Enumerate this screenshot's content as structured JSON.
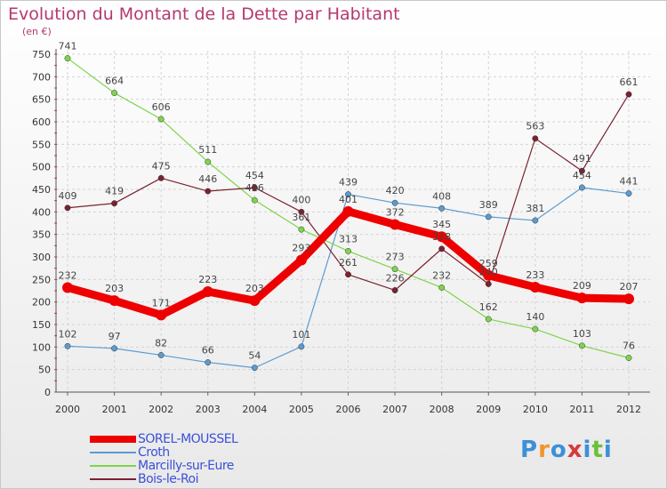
{
  "title": "Evolution du Montant de la Dette par Habitant",
  "unit": "(en €)",
  "brand": "Proxiti",
  "brand_colors": [
    "#3d8fd8",
    "#f0962a",
    "#3d8fd8",
    "#d73a3a",
    "#3d8fd8",
    "#6cbf3a",
    "#3d8fd8"
  ],
  "chart_data": {
    "type": "line",
    "x": [
      2000,
      2001,
      2002,
      2003,
      2004,
      2005,
      2006,
      2007,
      2008,
      2009,
      2010,
      2011,
      2012
    ],
    "ylim": [
      0,
      750
    ],
    "yticks": [
      0,
      50,
      100,
      150,
      200,
      250,
      300,
      350,
      400,
      450,
      500,
      550,
      600,
      650,
      700,
      750
    ],
    "grid": true,
    "legend_position": "bottom-left",
    "series": [
      {
        "name": "SOREL-MOUSSEL",
        "color": "#ee0000",
        "bold": true,
        "values": [
          232,
          203,
          171,
          223,
          203,
          293,
          401,
          372,
          345,
          259,
          233,
          209,
          207
        ]
      },
      {
        "name": "Croth",
        "color": "#5b9bd0",
        "bold": false,
        "values": [
          102,
          97,
          82,
          66,
          54,
          101,
          439,
          420,
          408,
          389,
          381,
          454,
          441
        ]
      },
      {
        "name": "Marcilly-sur-Eure",
        "color": "#7ed44a",
        "bold": false,
        "values": [
          741,
          664,
          606,
          511,
          426,
          361,
          313,
          273,
          232,
          162,
          140,
          103,
          76
        ]
      },
      {
        "name": "Bois-le-Roi",
        "color": "#7a2230",
        "bold": false,
        "values": [
          409,
          419,
          475,
          446,
          454,
          400,
          261,
          226,
          318,
          240,
          563,
          491,
          661
        ]
      }
    ]
  }
}
